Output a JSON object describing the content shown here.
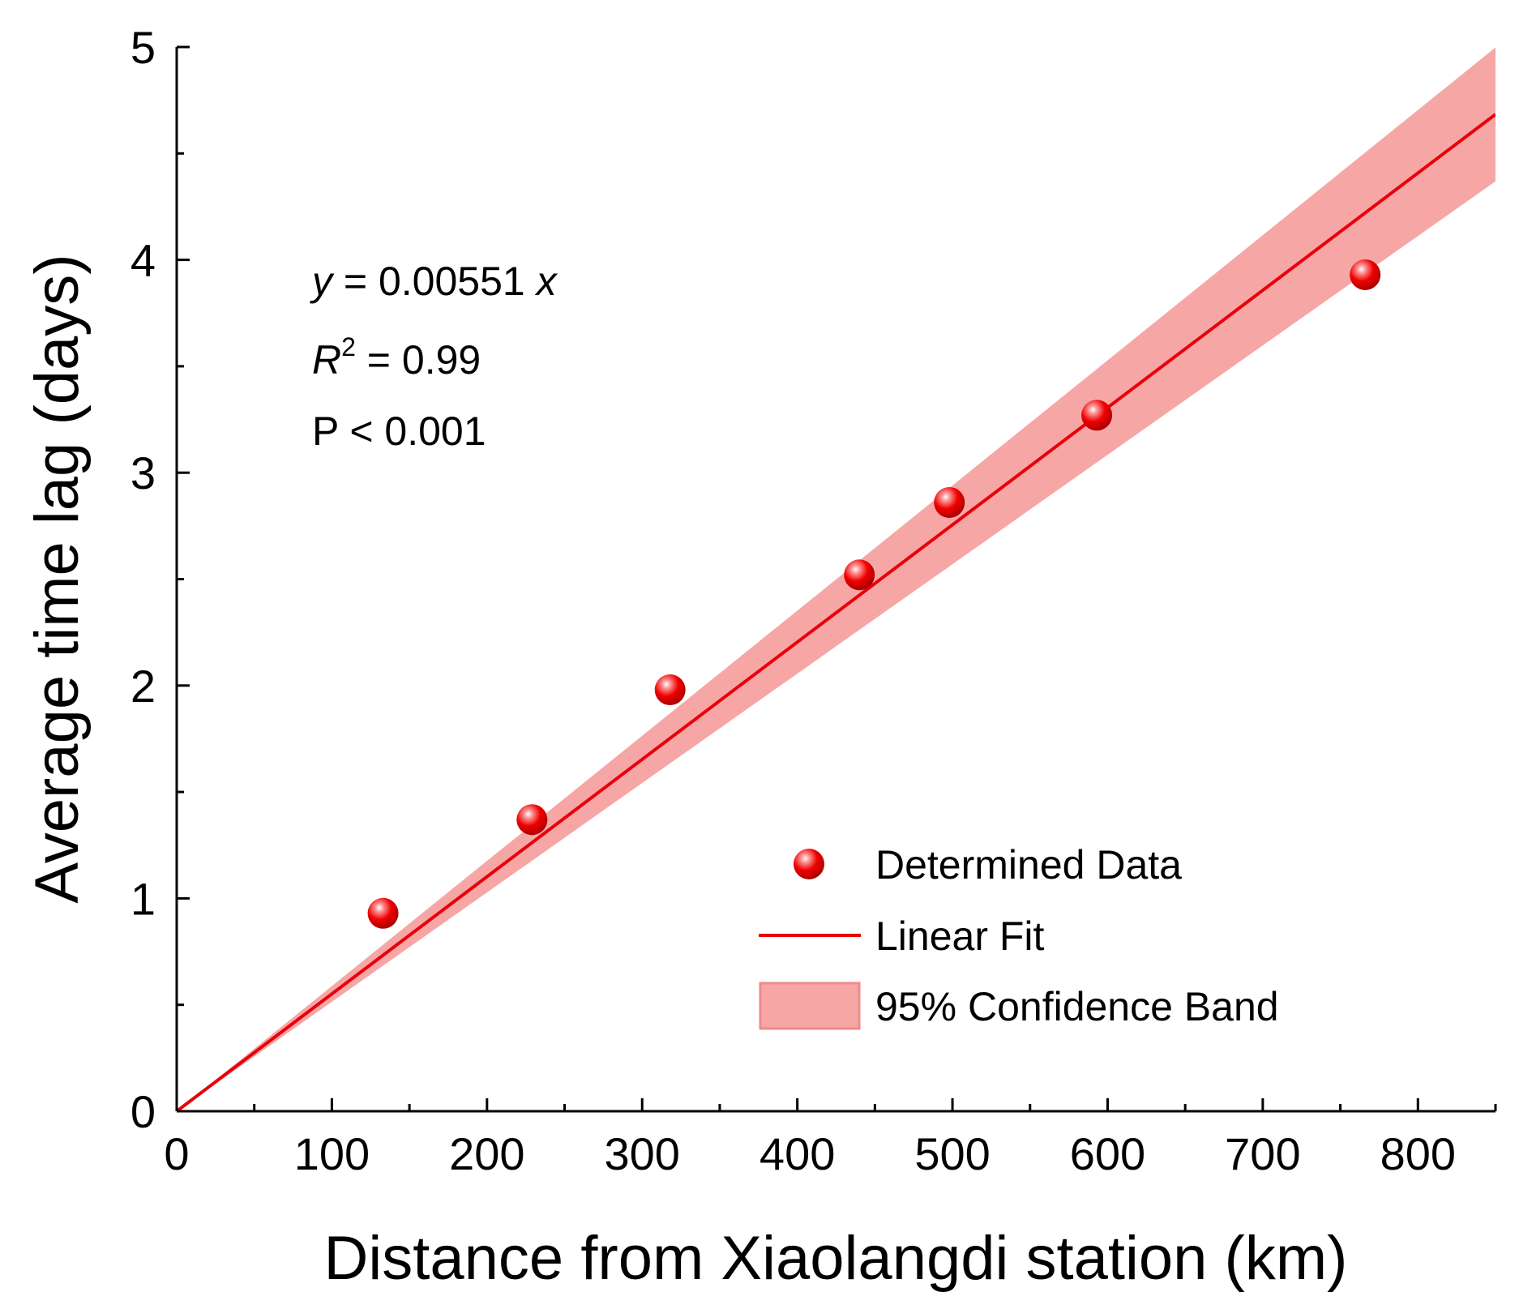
{
  "chart_data": {
    "type": "scatter",
    "title": "",
    "xlabel": "Distance from Xiaolangdi station (km)",
    "ylabel": "Average time lag (days)",
    "xlim": [
      0,
      850
    ],
    "ylim": [
      0,
      5
    ],
    "xticks": [
      0,
      100,
      200,
      300,
      400,
      500,
      600,
      700,
      800
    ],
    "yticks": [
      0,
      1,
      2,
      3,
      4,
      5
    ],
    "xtick_labels": [
      "0",
      "100",
      "200",
      "300",
      "400",
      "500",
      "600",
      "700",
      "800"
    ],
    "ytick_labels": [
      "0",
      "1",
      "2",
      "3",
      "4",
      "5"
    ],
    "series": [
      {
        "name": "Determined Data",
        "kind": "scatter",
        "color": "#e8000b",
        "x": [
          133,
          229,
          318,
          440,
          498,
          593,
          766
        ],
        "y": [
          0.93,
          1.37,
          1.98,
          2.52,
          2.86,
          3.27,
          3.93
        ]
      },
      {
        "name": "Linear Fit",
        "kind": "line",
        "color": "#e8000b",
        "slope": 0.00551,
        "intercept": 0,
        "x_range": [
          0,
          850
        ]
      },
      {
        "name": "95% Confidence Band",
        "kind": "band",
        "color": "#f7a6a6",
        "slope_lower": 0.00514,
        "slope_upper": 0.00588,
        "x_range": [
          0,
          850
        ]
      }
    ],
    "annotations": {
      "equation_var_y": "y",
      "equation_middle": " = 0.00551 ",
      "equation_var_x": "x",
      "r2_var": "R",
      "r2_sup": "2",
      "r2_value": " = 0.99",
      "p_value": "P < 0.001"
    },
    "legend": {
      "position": "bottom-right",
      "items": [
        "Determined Data",
        "Linear Fit",
        "95% Confidence Band"
      ]
    }
  }
}
